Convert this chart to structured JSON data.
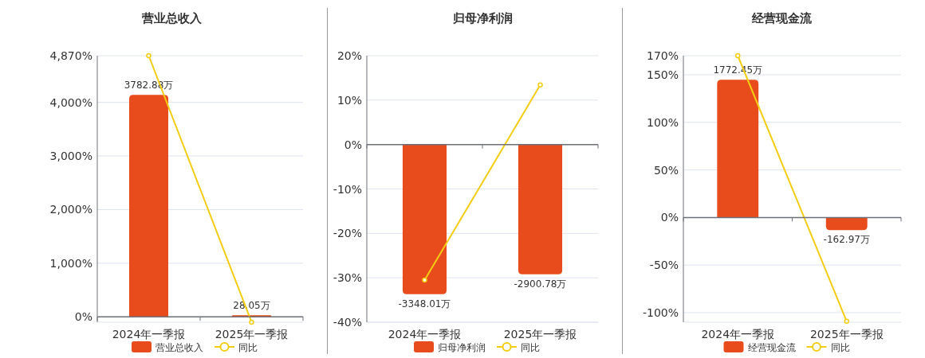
{
  "chart_data": [
    {
      "type": "bar",
      "title": "营业总收入",
      "categories": [
        "2024年一季报",
        "2025年一季报"
      ],
      "series": [
        {
          "name": "营业总收入",
          "color": "#e84c1c",
          "axis": "y2",
          "values": [
            3782.88,
            28.05
          ],
          "value_labels": [
            "3782.88万",
            "28.05万"
          ]
        },
        {
          "name": "同比",
          "type": "line",
          "color": "#f2cd14",
          "marker": "circle",
          "values": [
            4870,
            -99
          ]
        }
      ],
      "ylim": [
        -100,
        4870
      ],
      "yticks": [
        {
          "value": 0,
          "label": "0%"
        },
        {
          "value": 1000,
          "label": "1,000%"
        },
        {
          "value": 2000,
          "label": "2,000%"
        },
        {
          "value": 3000,
          "label": "3,000%"
        },
        {
          "value": 4000,
          "label": "4,000%"
        },
        {
          "value": 4870,
          "label": "4,870%"
        }
      ],
      "y2lim": [
        -91.4,
        4450
      ],
      "grid": "y",
      "legend": "bottom"
    },
    {
      "type": "bar",
      "title": "归母净利润",
      "categories": [
        "2024年一季报",
        "2025年一季报"
      ],
      "series": [
        {
          "name": "归母净利润",
          "color": "#e84c1c",
          "axis": "y2",
          "values": [
            -3348.01,
            -2900.78
          ],
          "value_labels": [
            "-3348.01万",
            "-2900.78万"
          ]
        },
        {
          "name": "同比",
          "type": "line",
          "color": "#f2cd14",
          "marker": "circle",
          "values": [
            -30.5,
            13.4
          ]
        }
      ],
      "ylim": [
        -40,
        20
      ],
      "yticks": [
        {
          "value": -40,
          "label": "-40%"
        },
        {
          "value": -30,
          "label": "-30%"
        },
        {
          "value": -20,
          "label": "-20%"
        },
        {
          "value": -10,
          "label": "-10%"
        },
        {
          "value": 0,
          "label": "0%"
        },
        {
          "value": 10,
          "label": "10%"
        },
        {
          "value": 20,
          "label": "20%"
        }
      ],
      "y2lim": [
        -3974,
        1987
      ],
      "grid": "y",
      "legend": "bottom"
    },
    {
      "type": "bar",
      "title": "经营现金流",
      "categories": [
        "2024年一季报",
        "2025年一季报"
      ],
      "series": [
        {
          "name": "经营现金流",
          "color": "#e84c1c",
          "axis": "y2",
          "values": [
            1772.45,
            -162.97
          ],
          "value_labels": [
            "1772.45万",
            "-162.97万"
          ]
        },
        {
          "name": "同比",
          "type": "line",
          "color": "#f2cd14",
          "marker": "circle",
          "values": [
            170,
            -109
          ]
        }
      ],
      "ylim": [
        -110,
        170
      ],
      "yticks": [
        {
          "value": -100,
          "label": "-100%"
        },
        {
          "value": -50,
          "label": "-50%"
        },
        {
          "value": 0,
          "label": "0%"
        },
        {
          "value": 50,
          "label": "50%"
        },
        {
          "value": 100,
          "label": "100%"
        },
        {
          "value": 150,
          "label": "150%"
        },
        {
          "value": 170,
          "label": "170%"
        }
      ],
      "y2lim": [
        -1347,
        2082
      ],
      "grid": "y",
      "legend": "bottom"
    }
  ]
}
